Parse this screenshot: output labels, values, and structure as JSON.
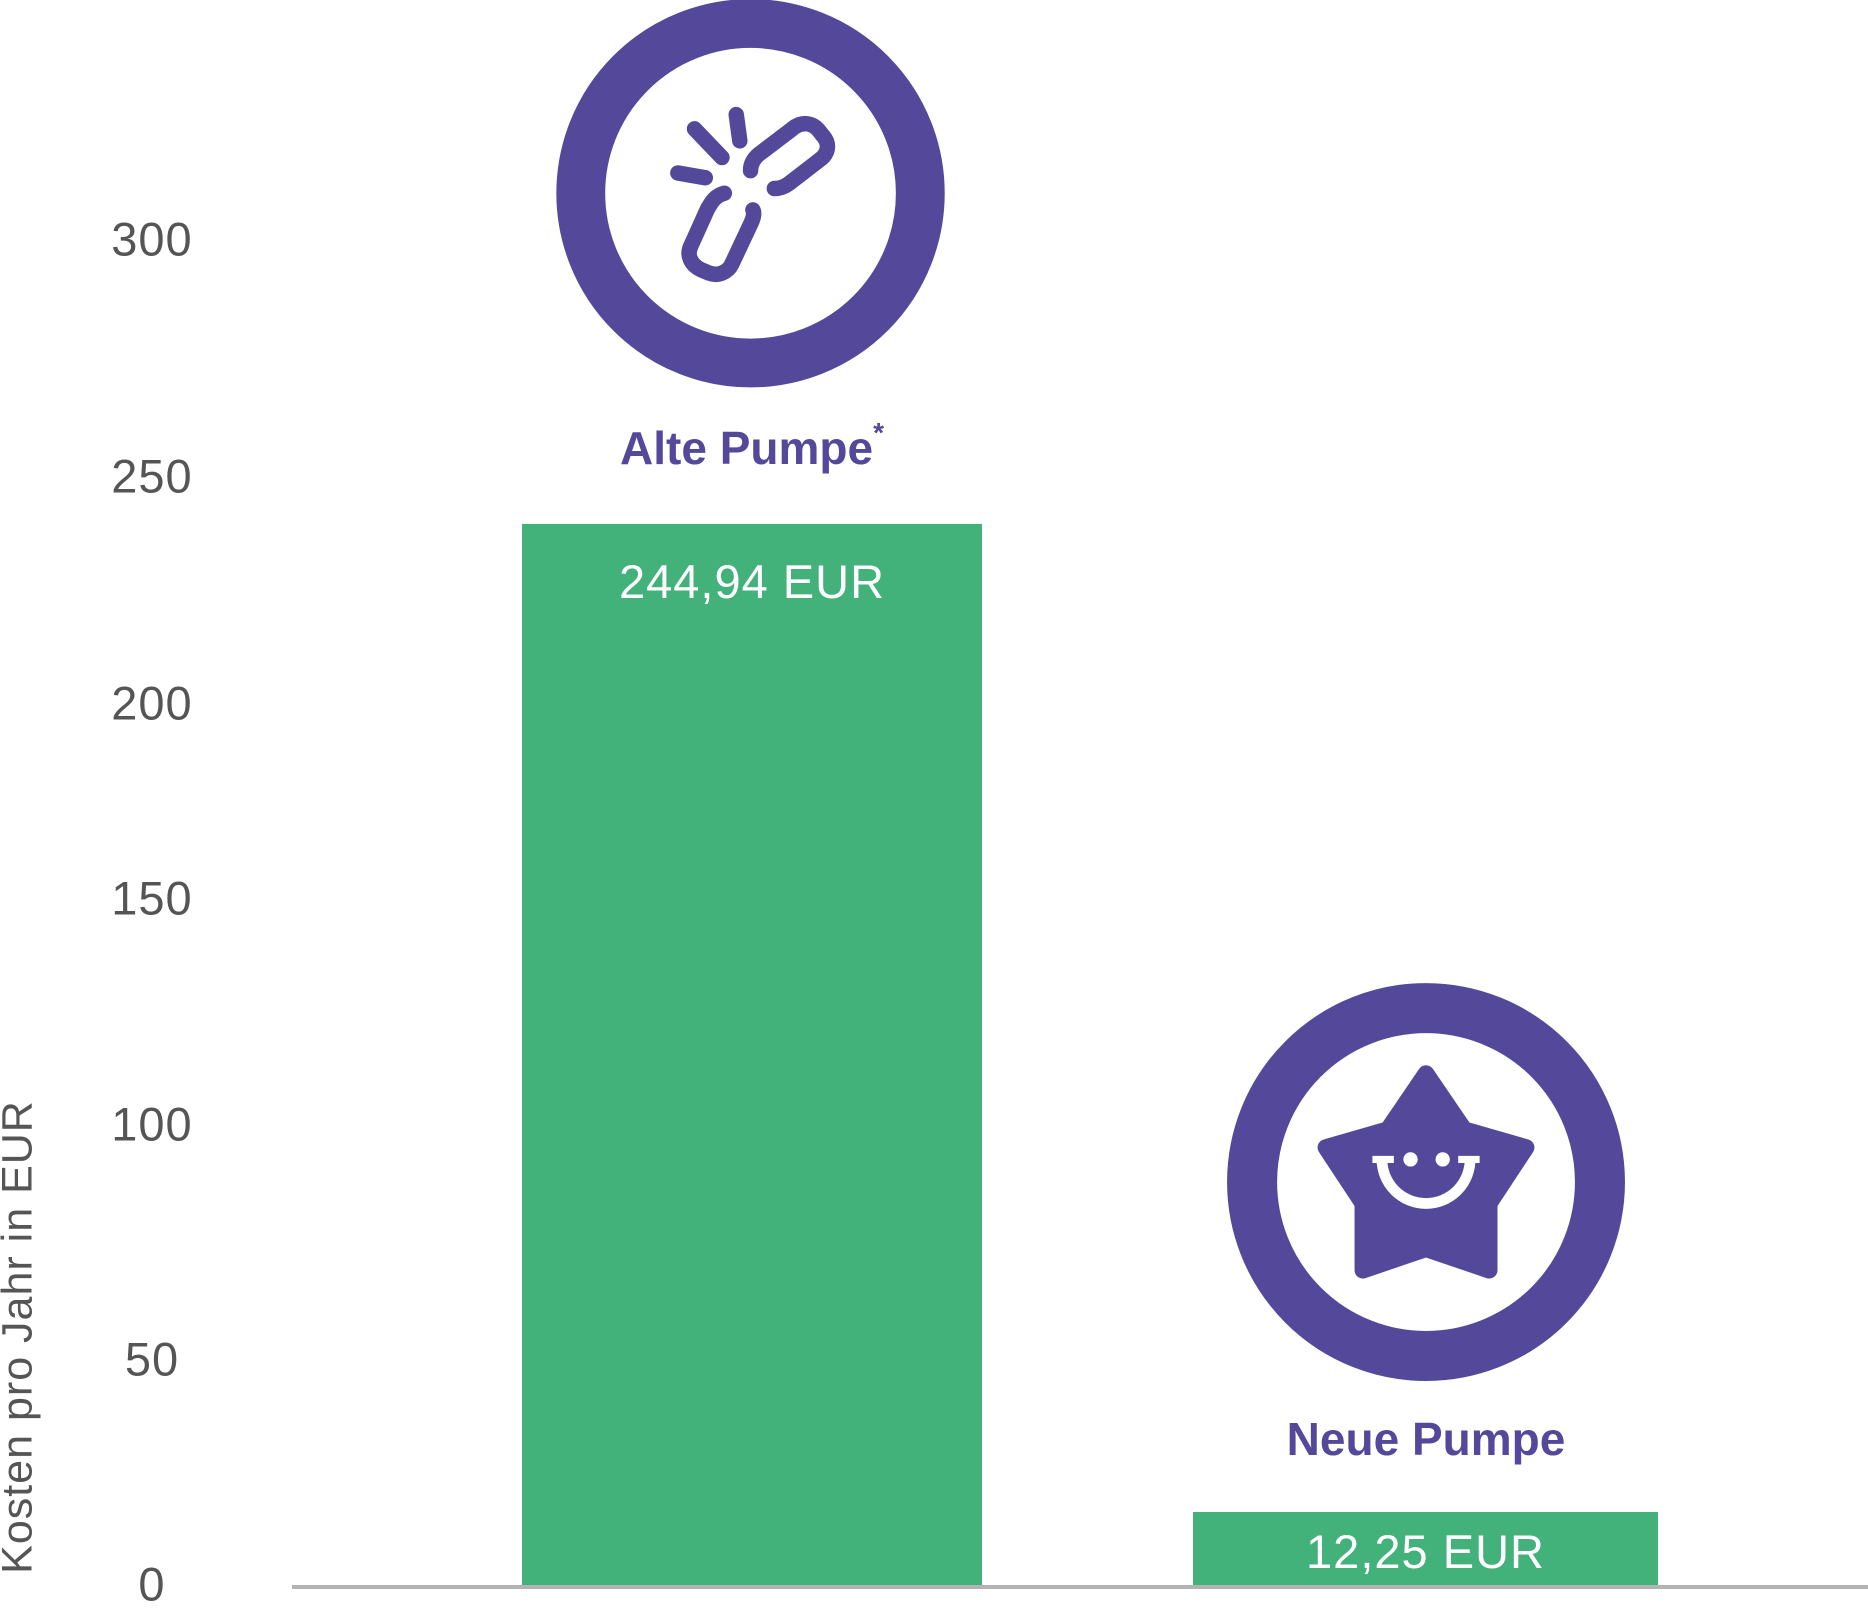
{
  "chart_data": {
    "type": "bar",
    "title": "",
    "xlabel": "",
    "ylabel": "Kosten pro Jahr in EUR",
    "ylim": [
      0,
      300
    ],
    "yticks": [
      "0",
      "50",
      "100",
      "150",
      "200",
      "250",
      "300"
    ],
    "categories": [
      "Alte Pumpe",
      "Neue Pumpe"
    ],
    "category_suffix": [
      "*",
      ""
    ],
    "values": [
      244.94,
      12.25
    ],
    "data_labels": [
      "244,94 EUR",
      "12,25 EUR"
    ],
    "icons": [
      "broken-chain-icon",
      "smiling-star-icon"
    ],
    "grid": false,
    "colors": {
      "bar": "#43b27a",
      "accent": "#54489a",
      "axis": "#b3b3b3",
      "text": "#555555"
    }
  }
}
